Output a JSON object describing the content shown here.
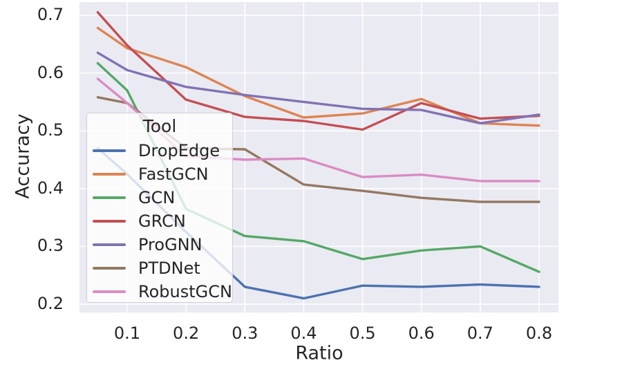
{
  "figure": {
    "colors": {
      "plot_background": "#EAEAF2",
      "grid": "#FFFFFF",
      "text": "#262626",
      "legend_border": "#CFCFD8"
    },
    "legend": {
      "title": "Tool",
      "position": "upper left inside",
      "items": [
        {
          "label": "DropEdge",
          "color": "#4C72B0"
        },
        {
          "label": "FastGCN",
          "color": "#DD8452"
        },
        {
          "label": "GCN",
          "color": "#55A868"
        },
        {
          "label": "GRCN",
          "color": "#C44E52"
        },
        {
          "label": "ProGNN",
          "color": "#8172B3"
        },
        {
          "label": "PTDNet",
          "color": "#937860"
        },
        {
          "label": "RobustGCN",
          "color": "#DA8BC3"
        }
      ]
    }
  },
  "chart_data": {
    "type": "line",
    "title": "",
    "xlabel": "Ratio",
    "ylabel": "Accuracy",
    "grid": true,
    "xlim": [
      0.019,
      0.833
    ],
    "ylim": [
      0.186,
      0.723
    ],
    "x_tick_values": [
      0.1,
      0.2,
      0.3,
      0.4,
      0.5,
      0.6,
      0.7,
      0.8
    ],
    "x_tick_labels": [
      "0.1",
      "0.2",
      "0.3",
      "0.4",
      "0.5",
      "0.6",
      "0.7",
      "0.8"
    ],
    "y_tick_values": [
      0.2,
      0.3,
      0.4,
      0.5,
      0.6,
      0.7
    ],
    "y_tick_labels": [
      "0.2",
      "0.3",
      "0.4",
      "0.5",
      "0.6",
      "0.7"
    ],
    "x": [
      0.05,
      0.1,
      0.2,
      0.3,
      0.4,
      0.5,
      0.6,
      0.7,
      0.8
    ],
    "series": [
      {
        "name": "DropEdge",
        "color": "#4C72B0",
        "values": [
          0.47,
          0.425,
          0.325,
          0.23,
          0.21,
          0.232,
          0.23,
          0.234,
          0.23
        ]
      },
      {
        "name": "FastGCN",
        "color": "#DD8452",
        "values": [
          0.678,
          0.643,
          0.61,
          0.56,
          0.523,
          0.53,
          0.555,
          0.513,
          0.509
        ]
      },
      {
        "name": "GCN",
        "color": "#55A868",
        "values": [
          0.617,
          0.57,
          0.365,
          0.318,
          0.309,
          0.278,
          0.293,
          0.3,
          0.256
        ]
      },
      {
        "name": "GRCN",
        "color": "#C44E52",
        "values": [
          0.705,
          0.648,
          0.554,
          0.524,
          0.517,
          0.502,
          0.548,
          0.521,
          0.526
        ]
      },
      {
        "name": "ProGNN",
        "color": "#8172B3",
        "values": [
          0.635,
          0.605,
          0.576,
          0.562,
          0.55,
          0.538,
          0.536,
          0.513,
          0.528
        ]
      },
      {
        "name": "PTDNet",
        "color": "#937860",
        "values": [
          0.558,
          0.548,
          0.47,
          0.468,
          0.407,
          0.396,
          0.384,
          0.377,
          0.377
        ]
      },
      {
        "name": "RobustGCN",
        "color": "#DA8BC3",
        "values": [
          0.59,
          0.548,
          0.456,
          0.45,
          0.452,
          0.42,
          0.424,
          0.413,
          0.413
        ]
      }
    ]
  }
}
